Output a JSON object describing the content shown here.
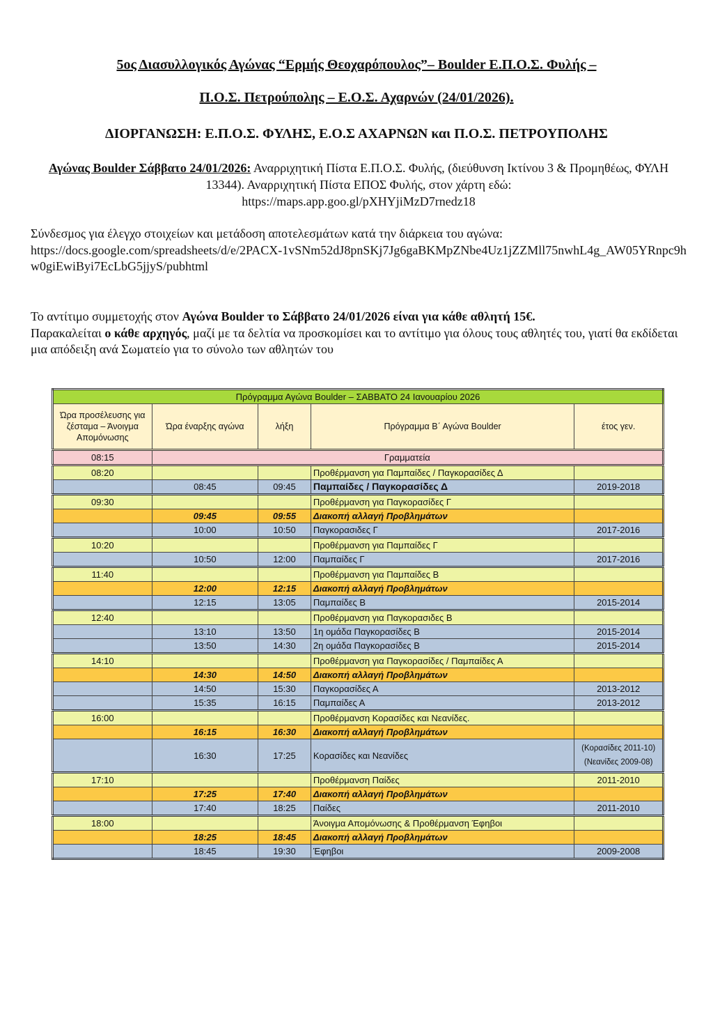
{
  "header": {
    "title_line1": "5ος Διασυλλογικός Αγώνας “Ερμής Θεοχαρόπουλος”– Boulder  Ε.Π.Ο.Σ. Φυλής –",
    "title_line2": "Π.Ο.Σ. Πετρούπολης – Ε.Ο.Σ. Αχαρνών  (24/01/2026).",
    "organizers": "ΔΙΟΡΓΑΝΩΣΗ: Ε.Π.Ο.Σ. ΦΥΛΗΣ, Ε.Ο.Σ ΑΧΑΡΝΩΝ και Π.Ο.Σ. ΠΕΤΡΟΥΠΟΛΗΣ"
  },
  "venue": {
    "label": "Αγώνας Boulder Σάββατο 24/01/2026:",
    "text": " Αναρριχητική Πίστα Ε.Π.Ο.Σ. Φυλής, (διεύθυνση Ικτίνου 3 & Προμηθέως, ΦΥΛΗ 13344). Αναρριχητική Πίστα ΕΠΟΣ Φυλής, στον χάρτη εδώ:",
    "map_link": "https://maps.app.goo.gl/pXHYjiMzD7rnedz18"
  },
  "results": {
    "text": "Σύνδεσμος για έλεγχο στοιχείων και μετάδοση αποτελεσμάτων κατά την διάρκεια του αγώνα:",
    "link": "https://docs.google.com/spreadsheets/d/e/2PACX-1vSNm52dJ8pnSKj7Jg6gaBKMpZNbe4Uz1jZZMll75nwhL4g_AW05YRnpc9hw0giEwiByi7EcLbG5jjyS/pubhtml"
  },
  "fee": {
    "p1": "Το αντίτιμο συμμετοχής στον ",
    "p1b": "Αγώνα Boulder   το Σάββατο 24/01/2026 είναι για κάθε αθλητή 15€.",
    "p2": "Παρακαλείται ",
    "p2b": "ο κάθε αρχηγός",
    "p2c": ", μαζί με τα δελτία να προσκομίσει και το αντίτιμο για όλους τους αθλητές του, γιατί θα εκδίδεται μια απόδειξη ανά Σωματείο για το σύνολο των αθλητών του"
  },
  "schedule": {
    "title": "Πρόγραμμα Αγώνα Boulder  – ΣΑΒΒΑΤΟ 24 Ιανουαρίου 2026",
    "columns": [
      "Ώρα προσέλευσης για ζέσταμα – Άνοιγμα Απομόνωσης",
      "Ώρα έναρξης αγώνα",
      "λήξη",
      "Πρόγραμμα Β΄ Αγώνα Boulder",
      "έτος γεν."
    ],
    "colors": {
      "title": "#a8d93c",
      "header": "#fff3cc",
      "secretariat": "#f7cdd0",
      "warmup": "#eef4a5",
      "event": "#b7c8dd",
      "break": "#fcc946"
    },
    "secretariat": {
      "time": "08:15",
      "label": "Γραμματεία"
    },
    "groups": [
      [
        {
          "type": "warmup",
          "arrive": "08:20",
          "start": "",
          "end": "",
          "program": "Προθέρμανση για Παμπαίδες / Παγκορασίδες Δ",
          "year": ""
        },
        {
          "type": "event",
          "arrive": "",
          "start": "08:45",
          "end": "09:45",
          "program": "Παμπαίδες / Παγκορασίδες Δ",
          "year": "2019-2018"
        }
      ],
      [
        {
          "type": "warmup",
          "arrive": "09:30",
          "start": "",
          "end": "",
          "program": "Προθέρμανση για Παγκορασίδες  Γ",
          "year": ""
        },
        {
          "type": "break",
          "arrive": "",
          "start": "09:45",
          "end": "09:55",
          "program": "Διακοπή αλλαγή Προβλημάτων",
          "year": ""
        },
        {
          "type": "event",
          "arrive": "",
          "start": "10:00",
          "end": "10:50",
          "program": "Παγκορασιδες Γ",
          "year": "2017-2016"
        }
      ],
      [
        {
          "type": "warmup",
          "arrive": "10:20",
          "start": "",
          "end": "",
          "program": "Προθέρμανση για Παμπαίδες  Γ",
          "year": ""
        },
        {
          "type": "event",
          "arrive": "",
          "start": "10:50",
          "end": "12:00",
          "program": "Παμπαίδες Γ",
          "year": "2017-2016"
        }
      ],
      [
        {
          "type": "warmup",
          "arrive": "11:40",
          "start": "",
          "end": "",
          "program": "Προθέρμανση για Παμπαίδες Β",
          "year": ""
        },
        {
          "type": "break",
          "arrive": "",
          "start": "12:00",
          "end": "12:15",
          "program": "Διακοπή αλλαγή Προβλημάτων",
          "year": ""
        },
        {
          "type": "event",
          "arrive": "",
          "start": "12:15",
          "end": "13:05",
          "program": "Παμπαίδες Β",
          "year": "2015-2014"
        }
      ],
      [
        {
          "type": "warmup",
          "arrive": "12:40",
          "start": "",
          "end": "",
          "program": "Προθέρμανση για Παγκορασιδες Β",
          "year": ""
        },
        {
          "type": "event",
          "arrive": "",
          "start": "13:10",
          "end": "13:50",
          "program": "1η ομάδα Παγκορασίδες Β",
          "year": "2015-2014"
        },
        {
          "type": "event",
          "arrive": "",
          "start": "13:50",
          "end": "14:30",
          "program": "2η ομάδα  Παγκορασίδες Β",
          "year": "2015-2014"
        }
      ],
      [
        {
          "type": "warmup",
          "arrive": "14:10",
          "start": "",
          "end": "",
          "program": "Προθέρμανση για Παγκορασίδες / Παμπαίδες Α",
          "year": ""
        },
        {
          "type": "break",
          "arrive": "",
          "start": "14:30",
          "end": "14:50",
          "program": "Διακοπή αλλαγή Προβλημάτων",
          "year": ""
        },
        {
          "type": "event",
          "arrive": "",
          "start": "14:50",
          "end": "15:30",
          "program": "Παγκορασίδες Α",
          "year": "2013-2012"
        },
        {
          "type": "event",
          "arrive": "",
          "start": "15:35",
          "end": "16:15",
          "program": "Παμπαίδες  Α",
          "year": "2013-2012"
        }
      ],
      [
        {
          "type": "warmup",
          "arrive": "16:00",
          "start": "",
          "end": "",
          "program": "Προθέρμανση  Κορασίδες και Νεανίδες.",
          "year": ""
        },
        {
          "type": "break",
          "arrive": "",
          "start": "16:15",
          "end": "16:30",
          "program": "Διακοπή αλλαγή Προβλημάτων",
          "year": ""
        },
        {
          "type": "event",
          "arrive": "",
          "start": "16:30",
          "end": "17:25",
          "program": "Κορασίδες και Νεανίδες",
          "year": "(Κορασίδες 2011-10)",
          "year2": "(Νεανίδες 2009-08)"
        }
      ],
      [
        {
          "type": "warmup",
          "arrive": "17:10",
          "start": "",
          "end": "",
          "program": "Προθέρμανση  Παίδες",
          "year": "2011-2010"
        },
        {
          "type": "break",
          "arrive": "",
          "start": "17:25",
          "end": "17:40",
          "program": "Διακοπή αλλαγή Προβλημάτων",
          "year": ""
        },
        {
          "type": "event",
          "arrive": "",
          "start": "17:40",
          "end": "18:25",
          "program": "Παίδες",
          "year": "2011-2010"
        }
      ],
      [
        {
          "type": "warmup",
          "arrive": "18:00",
          "start": "",
          "end": "",
          "program": "Άνοιγμα Απομόνωσης  & Προθέρμανση Έφηβοι",
          "year": ""
        },
        {
          "type": "break",
          "arrive": "",
          "start": "18:25",
          "end": "18:45",
          "program": "Διακοπή αλλαγή Προβλημάτων",
          "year": ""
        },
        {
          "type": "event",
          "arrive": "",
          "start": "18:45",
          "end": "19:30",
          "program": "Έφηβοι",
          "year": "2009-2008"
        }
      ]
    ]
  }
}
